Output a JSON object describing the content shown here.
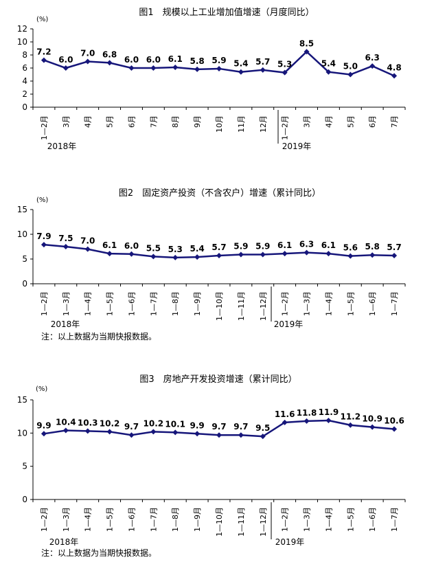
{
  "chart_data": [
    {
      "type": "line",
      "title": "图1　规模以上工业增加值增速（月度同比）",
      "unit": "(%)",
      "ylim": [
        0,
        12
      ],
      "yticks": [
        0,
        2,
        4,
        6,
        8,
        10,
        12
      ],
      "categories": [
        "1—2月",
        "3月",
        "4月",
        "5月",
        "6月",
        "7月",
        "8月",
        "9月",
        "10月",
        "11月",
        "12月",
        "1—2月",
        "3月",
        "4月",
        "5月",
        "6月",
        "7月"
      ],
      "years": [
        "2018年",
        "2019年"
      ],
      "series": [
        {
          "values": [
            7.2,
            6.0,
            7.0,
            6.8,
            6.0,
            6.0,
            6.1,
            5.8,
            5.9,
            5.4,
            5.7,
            5.3,
            8.5,
            5.4,
            5.0,
            6.3,
            4.8
          ]
        }
      ],
      "labels": [
        "7.2",
        "6.0",
        "7.0",
        "6.8",
        "6.0",
        "6.0",
        "6.1",
        "5.8",
        "5.9",
        "5.4",
        "5.7",
        "5.3",
        "8.5",
        "5.4",
        "5.0",
        "6.3",
        "4.8"
      ],
      "note": ""
    },
    {
      "type": "line",
      "title": "图2　固定资产投资（不含农户）增速（累计同比）",
      "unit": "(%)",
      "ylim": [
        0,
        15
      ],
      "yticks": [
        0,
        5,
        10,
        15
      ],
      "categories": [
        "1—2月",
        "1—3月",
        "1—4月",
        "1—5月",
        "1—6月",
        "1—7月",
        "1—8月",
        "1—9月",
        "1—10月",
        "1—11月",
        "1—12月",
        "1—2月",
        "1—3月",
        "1—4月",
        "1—5月",
        "1—6月",
        "1—7月"
      ],
      "years": [
        "2018年",
        "2019年"
      ],
      "series": [
        {
          "values": [
            7.9,
            7.5,
            7.0,
            6.1,
            6.0,
            5.5,
            5.3,
            5.4,
            5.7,
            5.9,
            5.9,
            6.1,
            6.3,
            6.1,
            5.6,
            5.8,
            5.7
          ]
        }
      ],
      "labels": [
        "7.9",
        "7.5",
        "7.0",
        "6.1",
        "6.0",
        "5.5",
        "5.3",
        "5.4",
        "5.7",
        "5.9",
        "5.9",
        "6.1",
        "6.3",
        "6.1",
        "5.6",
        "5.8",
        "5.7"
      ],
      "note": "注：以上数据为当期快报数据。"
    },
    {
      "type": "line",
      "title": "图3　房地产开发投资增速（累计同比）",
      "unit": "(%)",
      "ylim": [
        0,
        15
      ],
      "yticks": [
        0,
        5,
        10,
        15
      ],
      "categories": [
        "1—2月",
        "1—3月",
        "1—4月",
        "1—5月",
        "1—6月",
        "1—7月",
        "1—8月",
        "1—9月",
        "1—10月",
        "1—11月",
        "1—12月",
        "1—2月",
        "1—3月",
        "1—4月",
        "1—5月",
        "1—6月",
        "1—7月"
      ],
      "years": [
        "2018年",
        "2019年"
      ],
      "series": [
        {
          "values": [
            9.9,
            10.4,
            10.3,
            10.2,
            9.7,
            10.2,
            10.1,
            9.9,
            9.7,
            9.7,
            9.5,
            11.6,
            11.8,
            11.9,
            11.2,
            10.9,
            10.6
          ]
        }
      ],
      "labels": [
        "9.9",
        "10.4",
        "10.3",
        "10.2",
        "9.7",
        "10.2",
        "10.1",
        "9.9",
        "9.7",
        "9.7",
        "9.5",
        "11.6",
        "11.8",
        "11.9",
        "11.2",
        "10.9",
        "10.6"
      ],
      "note": "注：以上数据为当期快报数据。"
    }
  ]
}
